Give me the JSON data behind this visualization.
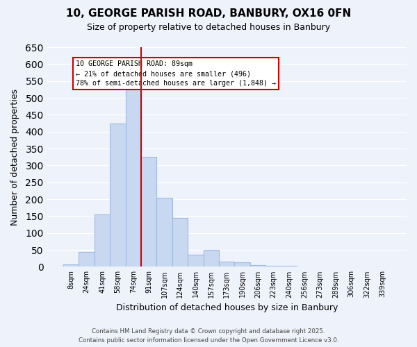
{
  "title": "10, GEORGE PARISH ROAD, BANBURY, OX16 0FN",
  "subtitle": "Size of property relative to detached houses in Banbury",
  "xlabel": "Distribution of detached houses by size in Banbury",
  "ylabel": "Number of detached properties",
  "bar_labels": [
    "8sqm",
    "24sqm",
    "41sqm",
    "58sqm",
    "74sqm",
    "91sqm",
    "107sqm",
    "124sqm",
    "140sqm",
    "157sqm",
    "173sqm",
    "190sqm",
    "206sqm",
    "223sqm",
    "240sqm",
    "256sqm",
    "273sqm",
    "289sqm",
    "306sqm",
    "322sqm",
    "339sqm"
  ],
  "bar_values": [
    8,
    45,
    155,
    425,
    545,
    325,
    205,
    145,
    35,
    50,
    15,
    13,
    5,
    3,
    2,
    1,
    1,
    0,
    0,
    0,
    1
  ],
  "bar_color": "#c8d8f0",
  "bar_edge_color": "#a0b8e0",
  "ylim": [
    0,
    650
  ],
  "yticks": [
    0,
    50,
    100,
    150,
    200,
    250,
    300,
    350,
    400,
    450,
    500,
    550,
    600,
    650
  ],
  "vline_pos": 4.5,
  "vline_color": "#cc0000",
  "annotation_title": "10 GEORGE PARISH ROAD: 89sqm",
  "annotation_line1": "← 21% of detached houses are smaller (496)",
  "annotation_line2": "78% of semi-detached houses are larger (1,848) →",
  "annotation_box_color": "#cc0000",
  "footer_line1": "Contains HM Land Registry data © Crown copyright and database right 2025.",
  "footer_line2": "Contains public sector information licensed under the Open Government Licence v3.0.",
  "background_color": "#eef2fb",
  "grid_color": "#ffffff"
}
